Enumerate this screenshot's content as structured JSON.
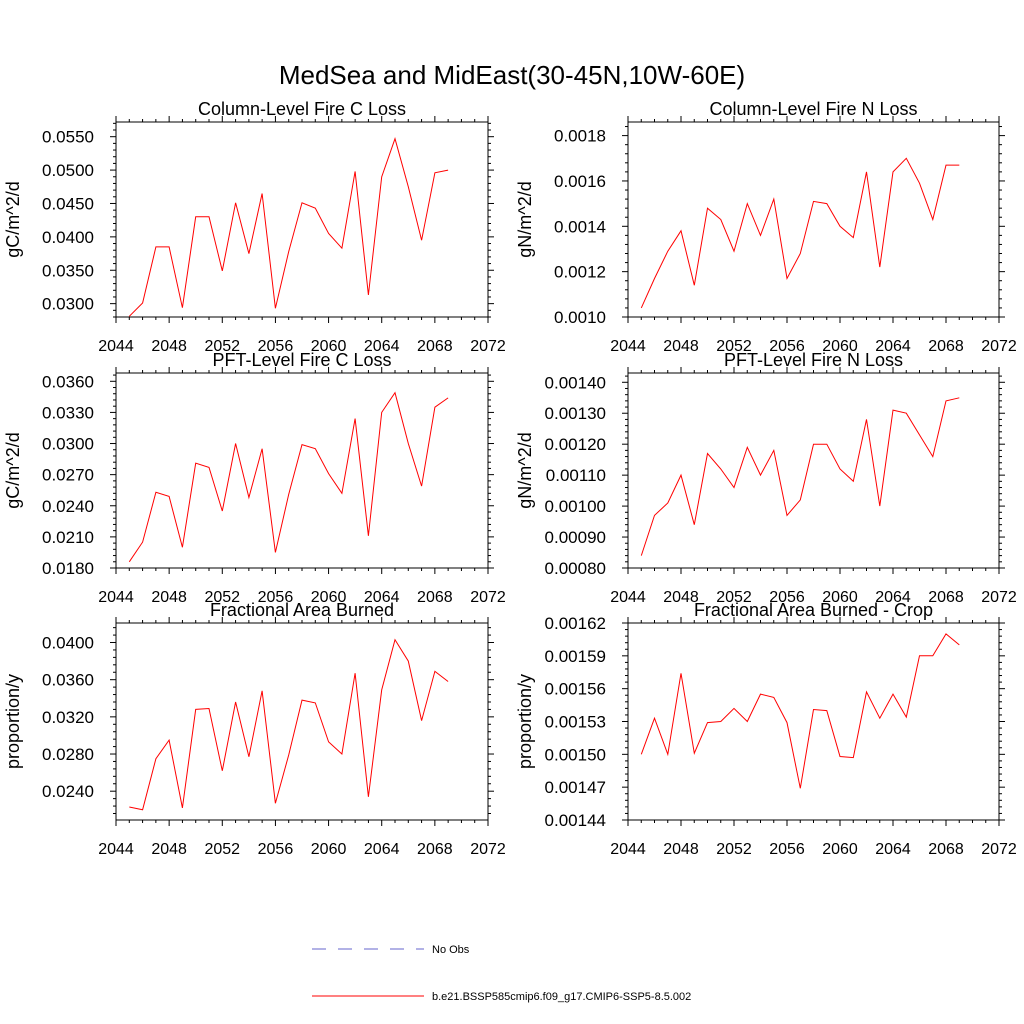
{
  "title": "MedSea and MidEast(30-45N,10W-60E)",
  "colors": {
    "series": "#ff0000",
    "obs": "#6666cc",
    "axis": "#000000"
  },
  "legend": {
    "obs_label": "No Obs",
    "model_label": "b.e21.BSSP585cmip6.f09_g17.CMIP6-SSP5-8.5.002"
  },
  "chart_data": [
    {
      "type": "line",
      "title": "Column-Level Fire C Loss",
      "ylabel": "gC/m^2/d",
      "xlim": [
        2044,
        2072
      ],
      "ylim": [
        0.028,
        0.0572
      ],
      "xticks": [
        2044,
        2048,
        2052,
        2056,
        2060,
        2064,
        2068,
        2072
      ],
      "xtick_labels": [
        "2044",
        "2048",
        "2052",
        "2056",
        "2060",
        "2064",
        "2068",
        "2072"
      ],
      "yticks": [
        0.03,
        0.035,
        0.04,
        0.045,
        0.05,
        0.055
      ],
      "ytick_labels": [
        "0.0300",
        "0.0350",
        "0.0400",
        "0.0450",
        "0.0500",
        "0.0550"
      ],
      "series": [
        {
          "x": [
            2045,
            2046,
            2047,
            2048,
            2049,
            2050,
            2051,
            2052,
            2053,
            2054,
            2055,
            2056,
            2057,
            2058,
            2059,
            2060,
            2061,
            2062,
            2063,
            2064,
            2065,
            2066,
            2067,
            2068,
            2069
          ],
          "values": [
            0.0281,
            0.0301,
            0.0385,
            0.0385,
            0.0294,
            0.043,
            0.043,
            0.0349,
            0.0451,
            0.0375,
            0.0465,
            0.0293,
            0.0378,
            0.0451,
            0.0443,
            0.0405,
            0.0383,
            0.0498,
            0.0313,
            0.049,
            0.0547,
            0.0475,
            0.0395,
            0.0496,
            0.05
          ]
        }
      ]
    },
    {
      "type": "line",
      "title": "Column-Level Fire N Loss",
      "ylabel": "gN/m^2/d",
      "xlim": [
        2044,
        2072
      ],
      "ylim": [
        0.001,
        0.00186
      ],
      "xticks": [
        2044,
        2048,
        2052,
        2056,
        2060,
        2064,
        2068,
        2072
      ],
      "xtick_labels": [
        "2044",
        "2048",
        "2052",
        "2056",
        "2060",
        "2064",
        "2068",
        "2072"
      ],
      "yticks": [
        0.001,
        0.0012,
        0.0014,
        0.0016,
        0.0018
      ],
      "ytick_labels": [
        "0.0010",
        "0.0012",
        "0.0014",
        "0.0016",
        "0.0018"
      ],
      "series": [
        {
          "x": [
            2045,
            2046,
            2047,
            2048,
            2049,
            2050,
            2051,
            2052,
            2053,
            2054,
            2055,
            2056,
            2057,
            2058,
            2059,
            2060,
            2061,
            2062,
            2063,
            2064,
            2065,
            2066,
            2067,
            2068,
            2069
          ],
          "values": [
            0.00104,
            0.00117,
            0.00129,
            0.00138,
            0.00114,
            0.00148,
            0.00143,
            0.00129,
            0.0015,
            0.00136,
            0.00152,
            0.00117,
            0.00128,
            0.00151,
            0.0015,
            0.0014,
            0.00135,
            0.00164,
            0.00122,
            0.00164,
            0.0017,
            0.00159,
            0.00143,
            0.00167,
            0.00167
          ]
        }
      ]
    },
    {
      "type": "line",
      "title": "PFT-Level Fire C Loss",
      "ylabel": "gC/m^2/d",
      "xlim": [
        2044,
        2072
      ],
      "ylim": [
        0.018,
        0.0368
      ],
      "xticks": [
        2044,
        2048,
        2052,
        2056,
        2060,
        2064,
        2068,
        2072
      ],
      "xtick_labels": [
        "2044",
        "2048",
        "2052",
        "2056",
        "2060",
        "2064",
        "2068",
        "2072"
      ],
      "yticks": [
        0.018,
        0.021,
        0.024,
        0.027,
        0.03,
        0.033,
        0.036
      ],
      "ytick_labels": [
        "0.0180",
        "0.0210",
        "0.0240",
        "0.0270",
        "0.0300",
        "0.0330",
        "0.0360"
      ],
      "series": [
        {
          "x": [
            2045,
            2046,
            2047,
            2048,
            2049,
            2050,
            2051,
            2052,
            2053,
            2054,
            2055,
            2056,
            2057,
            2058,
            2059,
            2060,
            2061,
            2062,
            2063,
            2064,
            2065,
            2066,
            2067,
            2068,
            2069
          ],
          "values": [
            0.0186,
            0.0205,
            0.0253,
            0.0249,
            0.02,
            0.0281,
            0.0277,
            0.0235,
            0.03,
            0.0248,
            0.0295,
            0.0195,
            0.0251,
            0.0299,
            0.0295,
            0.0271,
            0.0252,
            0.0324,
            0.0211,
            0.033,
            0.0349,
            0.03,
            0.0259,
            0.0335,
            0.0344
          ]
        }
      ]
    },
    {
      "type": "line",
      "title": "PFT-Level Fire N Loss",
      "ylabel": "gN/m^2/d",
      "xlim": [
        2044,
        2072
      ],
      "ylim": [
        0.0008,
        0.00143
      ],
      "xticks": [
        2044,
        2048,
        2052,
        2056,
        2060,
        2064,
        2068,
        2072
      ],
      "xtick_labels": [
        "2044",
        "2048",
        "2052",
        "2056",
        "2060",
        "2064",
        "2068",
        "2072"
      ],
      "yticks": [
        0.0008,
        0.0009,
        0.001,
        0.0011,
        0.0012,
        0.0013,
        0.0014
      ],
      "ytick_labels": [
        "0.00080",
        "0.00090",
        "0.00100",
        "0.00110",
        "0.00120",
        "0.00130",
        "0.00140"
      ],
      "series": [
        {
          "x": [
            2045,
            2046,
            2047,
            2048,
            2049,
            2050,
            2051,
            2052,
            2053,
            2054,
            2055,
            2056,
            2057,
            2058,
            2059,
            2060,
            2061,
            2062,
            2063,
            2064,
            2065,
            2066,
            2067,
            2068,
            2069
          ],
          "values": [
            0.00084,
            0.00097,
            0.00101,
            0.0011,
            0.00094,
            0.00117,
            0.00112,
            0.00106,
            0.00119,
            0.0011,
            0.00118,
            0.00097,
            0.00102,
            0.0012,
            0.0012,
            0.00112,
            0.00108,
            0.00128,
            0.001,
            0.00131,
            0.0013,
            0.00123,
            0.00116,
            0.00134,
            0.00135
          ]
        }
      ]
    },
    {
      "type": "line",
      "title": "Fractional Area Burned",
      "ylabel": "proportion/y",
      "xlim": [
        2044,
        2072
      ],
      "ylim": [
        0.0209,
        0.0421
      ],
      "xticks": [
        2044,
        2048,
        2052,
        2056,
        2060,
        2064,
        2068,
        2072
      ],
      "xtick_labels": [
        "2044",
        "2048",
        "2052",
        "2056",
        "2060",
        "2064",
        "2068",
        "2072"
      ],
      "yticks": [
        0.024,
        0.028,
        0.032,
        0.036,
        0.04
      ],
      "ytick_labels": [
        "0.0240",
        "0.0280",
        "0.0320",
        "0.0360",
        "0.0400"
      ],
      "series": [
        {
          "x": [
            2045,
            2046,
            2047,
            2048,
            2049,
            2050,
            2051,
            2052,
            2053,
            2054,
            2055,
            2056,
            2057,
            2058,
            2059,
            2060,
            2061,
            2062,
            2063,
            2064,
            2065,
            2066,
            2067,
            2068,
            2069
          ],
          "values": [
            0.0223,
            0.022,
            0.0275,
            0.0295,
            0.0222,
            0.0328,
            0.0329,
            0.0262,
            0.0336,
            0.0277,
            0.0348,
            0.0227,
            0.0279,
            0.0338,
            0.0335,
            0.0293,
            0.028,
            0.0367,
            0.0234,
            0.0349,
            0.0403,
            0.038,
            0.0316,
            0.0369,
            0.0358
          ]
        }
      ]
    },
    {
      "type": "line",
      "title": "Fractional Area Burned - Crop",
      "ylabel": "proportion/y",
      "xlim": [
        2044,
        2072
      ],
      "ylim": [
        0.00144,
        0.00162
      ],
      "xticks": [
        2044,
        2048,
        2052,
        2056,
        2060,
        2064,
        2068,
        2072
      ],
      "xtick_labels": [
        "2044",
        "2048",
        "2052",
        "2056",
        "2060",
        "2064",
        "2068",
        "2072"
      ],
      "yticks": [
        0.00144,
        0.00147,
        0.0015,
        0.00153,
        0.00156,
        0.00159,
        0.00162
      ],
      "ytick_labels": [
        "0.00144",
        "0.00147",
        "0.00150",
        "0.00153",
        "0.00156",
        "0.00159",
        "0.00162"
      ],
      "series": [
        {
          "x": [
            2045,
            2046,
            2047,
            2048,
            2049,
            2050,
            2051,
            2052,
            2053,
            2054,
            2055,
            2056,
            2057,
            2058,
            2059,
            2060,
            2061,
            2062,
            2063,
            2064,
            2065,
            2066,
            2067,
            2068,
            2069
          ],
          "values": [
            0.0015,
            0.001533,
            0.0015,
            0.001574,
            0.001501,
            0.001529,
            0.00153,
            0.001542,
            0.00153,
            0.001555,
            0.001552,
            0.001529,
            0.001469,
            0.001541,
            0.00154,
            0.001498,
            0.001497,
            0.001557,
            0.001533,
            0.001555,
            0.001534,
            0.00159,
            0.00159,
            0.00161,
            0.0016
          ]
        }
      ]
    }
  ]
}
